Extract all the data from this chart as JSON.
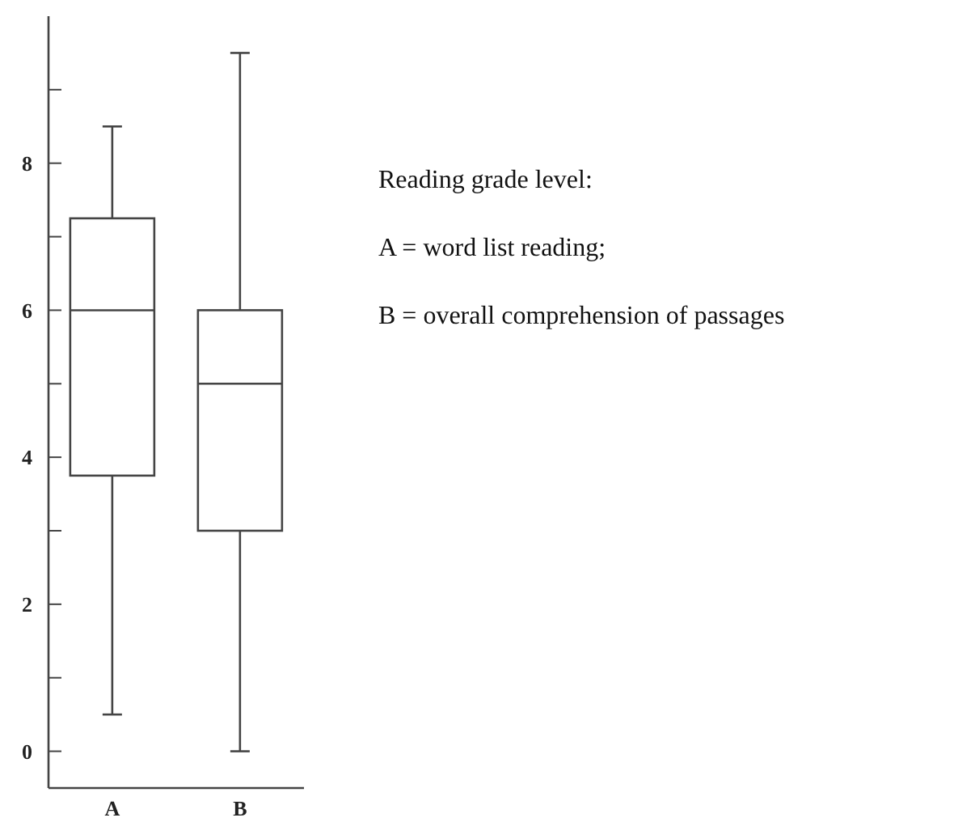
{
  "chart_data": {
    "type": "box",
    "categories": [
      "A",
      "B"
    ],
    "color": "#444444",
    "boxes": [
      {
        "low": 0.5,
        "q1": 3.75,
        "median": 6,
        "q3": 7.25,
        "high": 8.5
      },
      {
        "low": 0,
        "q1": 3,
        "median": 5,
        "q3": 6,
        "high": 9.5
      }
    ],
    "ylim": [
      -0.5,
      10
    ],
    "yticks": [
      0,
      {
        "value": 1,
        "label": null
      },
      2,
      {
        "value": 3,
        "label": null
      },
      4,
      {
        "value": 5,
        "label": null
      },
      6,
      {
        "value": 7,
        "label": null
      },
      8,
      {
        "value": 9,
        "label": null
      }
    ],
    "annotations": [
      "Reading grade level:",
      "A = word list reading;",
      "B = overall comprehension of passages"
    ]
  }
}
